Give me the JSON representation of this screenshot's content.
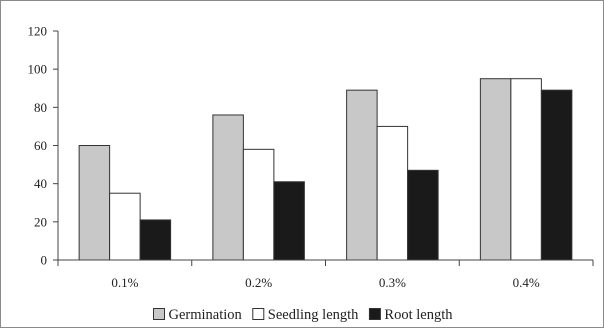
{
  "chart_data": {
    "type": "bar",
    "categories": [
      "0.1%",
      "0.2%",
      "0.3%",
      "0.4%"
    ],
    "series": [
      {
        "name": "Germination",
        "values": [
          60,
          76,
          89,
          95
        ],
        "color": "#c8c8c8"
      },
      {
        "name": "Seedling length",
        "values": [
          35,
          58,
          70,
          95
        ],
        "color": "#ffffff"
      },
      {
        "name": "Root length",
        "values": [
          21,
          41,
          47,
          89
        ],
        "color": "#1a1a1a"
      }
    ],
    "title": "",
    "xlabel": "",
    "ylabel": "",
    "ylim": [
      0,
      120
    ],
    "yticks": [
      0,
      20,
      40,
      60,
      80,
      100,
      120
    ],
    "grid": false,
    "legend_position": "bottom"
  }
}
